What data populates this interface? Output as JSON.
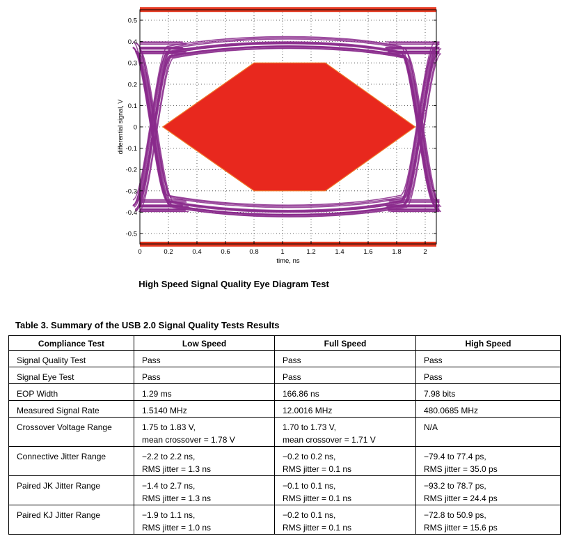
{
  "chart_data": {
    "type": "line",
    "title": "",
    "xlabel": "time, ns",
    "ylabel": "differential signal, V",
    "xlim": [
      0,
      2.05
    ],
    "ylim": [
      -0.55,
      0.55
    ],
    "xticks": [
      "0",
      "0.2",
      "0.4",
      "0.6",
      "0.8",
      "1",
      "1.2",
      "1.4",
      "1.6",
      "1.8",
      "2"
    ],
    "yticks": [
      "0.5",
      "0.4",
      "0.3",
      "0.2",
      "0.1",
      "0",
      "-0.1",
      "-0.2",
      "-0.3",
      "-0.4",
      "-0.5"
    ],
    "grid": true,
    "colors": {
      "trace": "#8a2a8c",
      "mask": "#e8281e",
      "limit": "#e53a22"
    },
    "mask": {
      "x": [
        0.16,
        0.8,
        1.3,
        1.93,
        1.3,
        0.8
      ],
      "y": [
        0,
        0.3,
        0.3,
        0,
        -0.3,
        -0.3
      ]
    },
    "limit_lines": [
      0.55,
      -0.55
    ],
    "eye": {
      "high_level": 0.37,
      "low_level": -0.37,
      "crossings": [
        0.02,
        2.04
      ]
    }
  },
  "caption": "High Speed Signal Quality Eye Diagram Test",
  "table": {
    "title": "Table 3. Summary of the USB 2.0 Signal Quality Tests Results",
    "headers": [
      "Compliance Test",
      "Low Speed",
      "Full Speed",
      "High Speed"
    ],
    "rows": [
      {
        "test": "Signal Quality Test",
        "low": [
          "Pass"
        ],
        "full": [
          "Pass"
        ],
        "high": [
          "Pass"
        ]
      },
      {
        "test": "Signal Eye Test",
        "low": [
          "Pass"
        ],
        "full": [
          "Pass"
        ],
        "high": [
          "Pass"
        ]
      },
      {
        "test": "EOP Width",
        "low": [
          "1.29 ms"
        ],
        "full": [
          "166.86 ns"
        ],
        "high": [
          "7.98 bits"
        ]
      },
      {
        "test": "Measured Signal Rate",
        "low": [
          "1.5140 MHz"
        ],
        "full": [
          "12.0016 MHz"
        ],
        "high": [
          "480.0685 MHz"
        ]
      },
      {
        "test": "Crossover Voltage Range",
        "low": [
          "1.75 to 1.83 V,",
          "mean crossover = 1.78 V"
        ],
        "full": [
          "1.70 to 1.73 V,",
          "mean crossover = 1.71 V"
        ],
        "high": [
          "N/A"
        ]
      },
      {
        "test": "Connective Jitter Range",
        "low": [
          "−2.2 to 2.2 ns,",
          "RMS jitter = 1.3 ns"
        ],
        "full": [
          "−0.2 to 0.2 ns,",
          "RMS jitter = 0.1 ns"
        ],
        "high": [
          "−79.4 to 77.4 ps,",
          "RMS jitter = 35.0 ps"
        ]
      },
      {
        "test": "Paired JK Jitter Range",
        "low": [
          "−1.4 to 2.7 ns,",
          "RMS jitter = 1.3 ns"
        ],
        "full": [
          "−0.1 to 0.1 ns,",
          "RMS jitter = 0.1 ns"
        ],
        "high": [
          "−93.2 to 78.7 ps,",
          "RMS jitter = 24.4 ps"
        ]
      },
      {
        "test": "Paired KJ Jitter Range",
        "low": [
          "−1.9 to 1.1 ns,",
          "RMS jitter = 1.0 ns"
        ],
        "full": [
          "−0.2 to 0.1 ns,",
          "RMS jitter = 0.1 ns"
        ],
        "high": [
          "−72.8 to 50.9 ps,",
          "RMS jitter = 15.6 ps"
        ]
      }
    ]
  }
}
